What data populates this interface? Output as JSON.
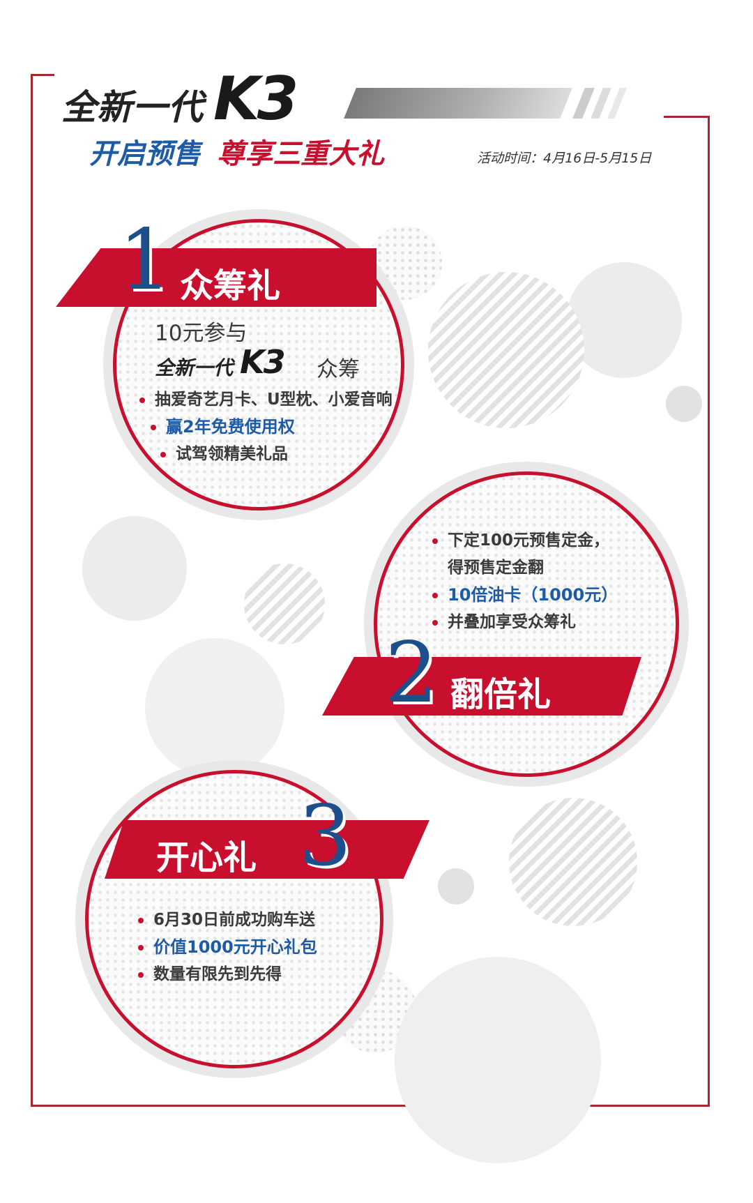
{
  "header": {
    "brand_prefix": "全新一代",
    "brand_model": "K3",
    "subtitle_blue": "开启预售",
    "subtitle_red": "尊享三重大礼",
    "activity_time": "活动时间：4月16日-5月15日"
  },
  "gifts": [
    {
      "number": "1",
      "title": "众筹礼",
      "intro_line1": "10元参与",
      "intro_prefix": "全新一代",
      "intro_model": "K3",
      "intro_suffix": "众筹",
      "items": [
        "抽爱奇艺月卡、U型枕、小爱音响",
        "赢2年免费使用权",
        "试驾领精美礼品"
      ]
    },
    {
      "number": "2",
      "title": "翻倍礼",
      "items": [
        "下定100元预售定金，",
        "得预售定金翻",
        "10倍油卡（1000元）",
        "并叠加享受众筹礼"
      ]
    },
    {
      "number": "3",
      "title": "开心礼",
      "items": [
        "6月30日前成功购车送",
        "价值1000元开心礼包",
        "数量有限先到先得"
      ]
    }
  ],
  "colors": {
    "accent_red": "#c8102e",
    "accent_blue": "#1d5ba6",
    "frame": "#a8262f"
  }
}
